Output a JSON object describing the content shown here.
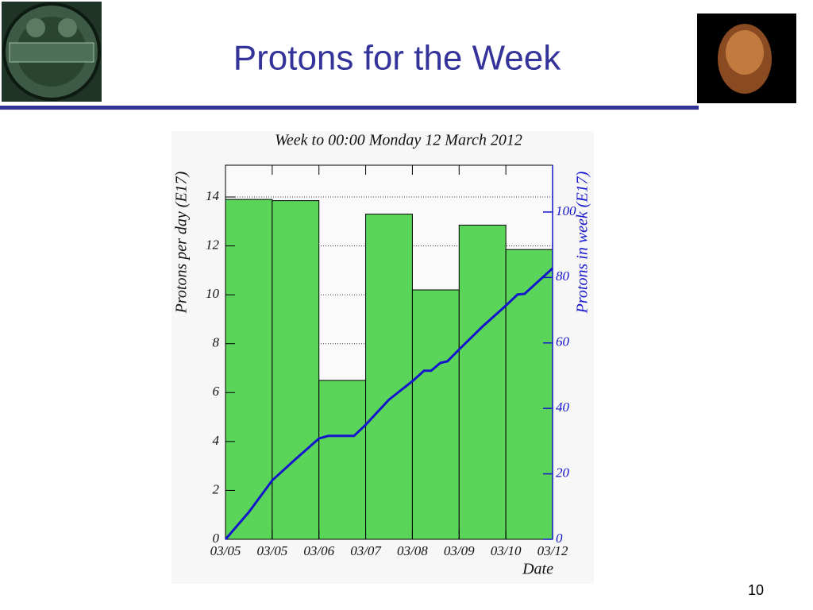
{
  "title": "Protons for the Week",
  "page_number": "10",
  "chart_data": {
    "type": "histogram",
    "title": "Week to 00:00 Monday 12 March 2012",
    "ylabel": "Protons per day (E17)",
    "y2label": "Protons in week (E17)",
    "xlabel": "Date",
    "bins": [
      0,
      1,
      2,
      3,
      4,
      5,
      6,
      7
    ],
    "counts": [
      13.9,
      13.85,
      6.5,
      13.3,
      10.2,
      12.85,
      11.85
    ],
    "color": "#5ad55a",
    "xlim": [
      0,
      7
    ],
    "xticks": [
      {
        "value": 0,
        "label": "03/05"
      },
      {
        "value": 1,
        "label": "03/05"
      },
      {
        "value": 2,
        "label": "03/06"
      },
      {
        "value": 3,
        "label": "03/07"
      },
      {
        "value": 4,
        "label": "03/08"
      },
      {
        "value": 5,
        "label": "03/09"
      },
      {
        "value": 6,
        "label": "03/10"
      },
      {
        "value": 7,
        "label": "03/12"
      }
    ],
    "ylim": [
      0,
      15.3
    ],
    "yticks": [
      0,
      2,
      4,
      6,
      8,
      10,
      12,
      14
    ],
    "y2lim": [
      0,
      114.3
    ],
    "y2ticks": [
      0,
      20,
      40,
      60,
      80,
      100
    ],
    "grid": true,
    "line": {
      "axis": "y2",
      "color": "#1515cc",
      "x": [
        0,
        0.5,
        1,
        1.5,
        2,
        2.2,
        2.75,
        3,
        3.5,
        4,
        4.25,
        4.4,
        4.6,
        4.75,
        5,
        5.5,
        6,
        6.25,
        6.4,
        7
      ],
      "values": [
        0,
        8.3,
        18,
        24.5,
        30.8,
        31.6,
        31.6,
        35,
        42.7,
        48.3,
        51.5,
        51.5,
        53.9,
        54.4,
        58,
        65,
        71.4,
        74.8,
        75,
        82.8
      ]
    }
  }
}
